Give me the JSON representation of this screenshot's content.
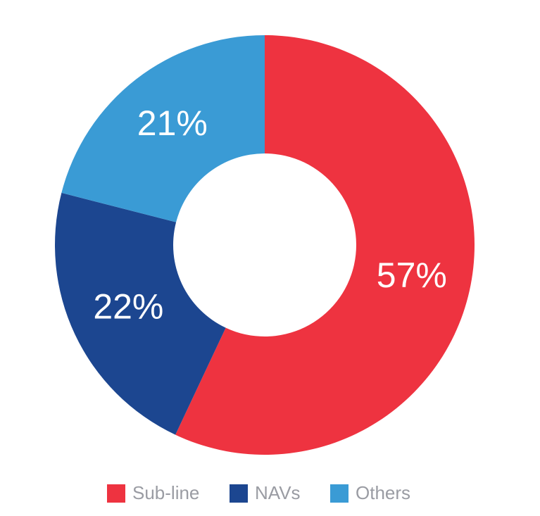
{
  "chart_data": {
    "type": "donut",
    "categories": [
      "Sub-line",
      "NAVs",
      "Others"
    ],
    "values": [
      57,
      22,
      21
    ],
    "value_labels": [
      "57%",
      "22%",
      "21%"
    ],
    "colors": [
      "#ee3340",
      "#1c4690",
      "#3a9bd5"
    ],
    "legend": "bottom"
  }
}
